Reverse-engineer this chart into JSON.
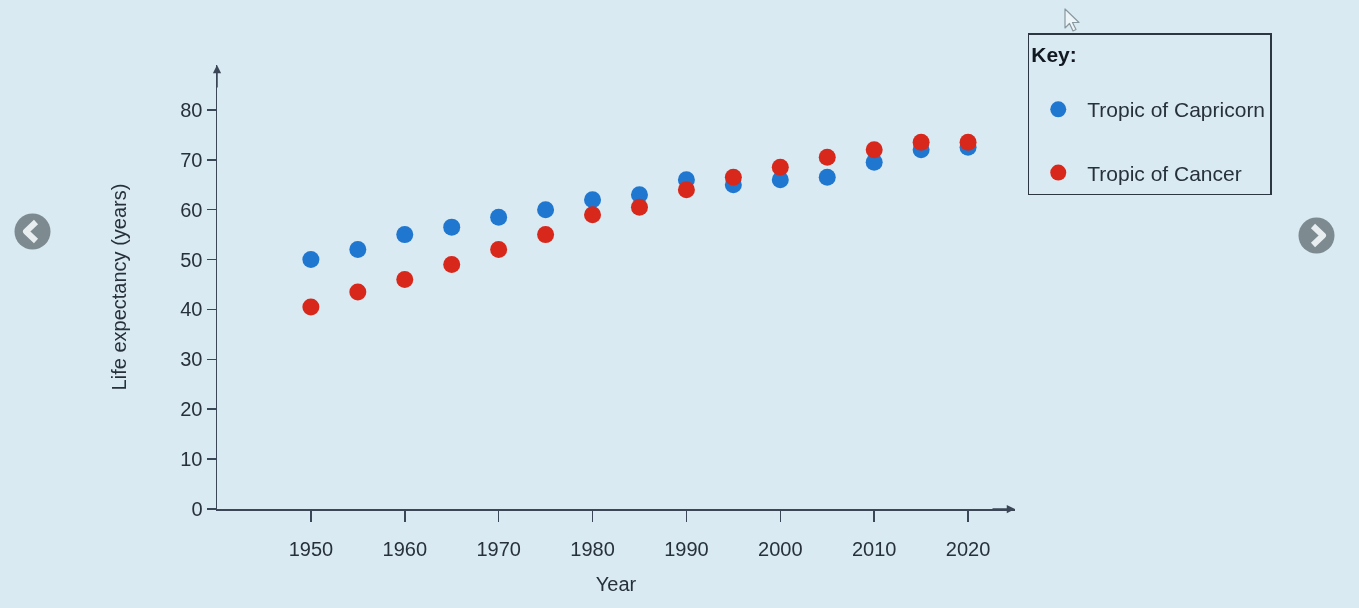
{
  "chart_data": {
    "type": "scatter",
    "xlabel": "Year",
    "ylabel": "Life expectancy (years)",
    "legend_title": "Key:",
    "x": [
      1950,
      1955,
      1960,
      1965,
      1970,
      1975,
      1980,
      1985,
      1990,
      1995,
      2000,
      2005,
      2010,
      2015,
      2020
    ],
    "series": [
      {
        "name": "Tropic of Capricorn",
        "color": "#1f77d0",
        "values": [
          50,
          52,
          55,
          56.5,
          58.5,
          60,
          62,
          63,
          66,
          65,
          66,
          66.5,
          69.5,
          72,
          72.5
        ]
      },
      {
        "name": "Tropic of Cancer",
        "color": "#d8281c",
        "values": [
          40.5,
          43.5,
          46,
          49,
          52,
          55,
          59,
          60.5,
          64,
          66.5,
          68.5,
          70.5,
          72,
          73.5,
          73.5
        ]
      }
    ],
    "xlim": [
      1940,
      2025
    ],
    "ylim": [
      0,
      89
    ],
    "xticks": [
      1950,
      1960,
      1970,
      1980,
      1990,
      2000,
      2010,
      2020
    ],
    "yticks": [
      0,
      10,
      20,
      30,
      40,
      50,
      60,
      70,
      80
    ],
    "legend": "top right",
    "marker": "circle"
  }
}
